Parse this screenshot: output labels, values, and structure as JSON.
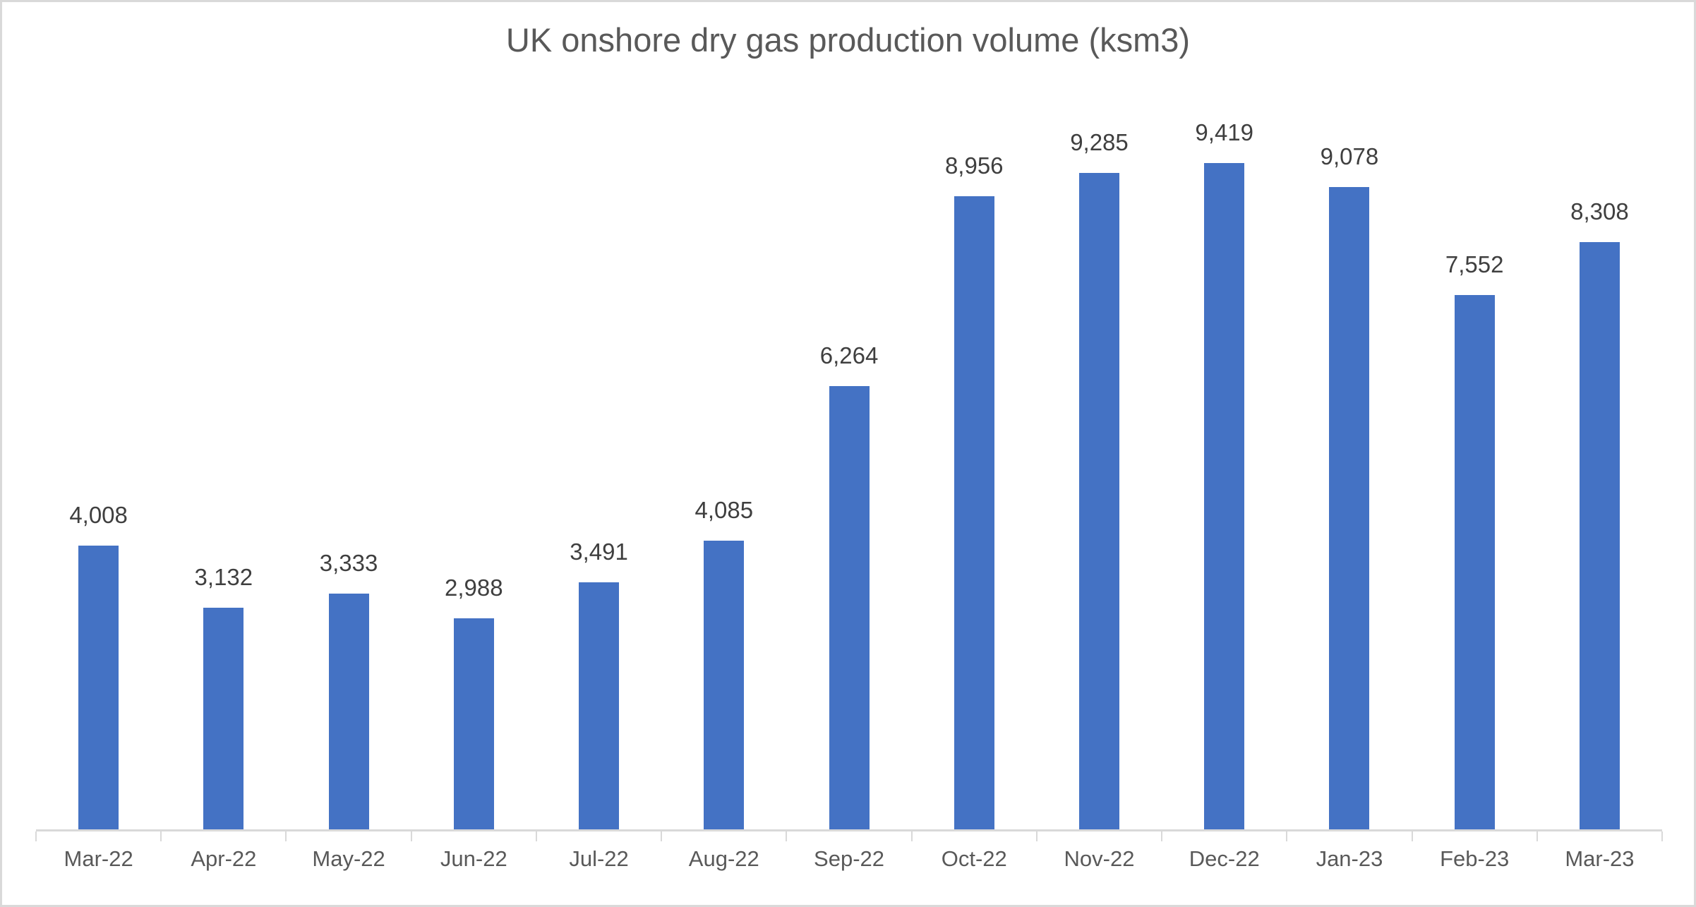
{
  "chart_data": {
    "type": "bar",
    "title": "UK onshore dry gas production volume (ksm3)",
    "categories": [
      "Mar-22",
      "Apr-22",
      "May-22",
      "Jun-22",
      "Jul-22",
      "Aug-22",
      "Sep-22",
      "Oct-22",
      "Nov-22",
      "Dec-22",
      "Jan-23",
      "Feb-23",
      "Mar-23"
    ],
    "values": [
      4008,
      3132,
      3333,
      2988,
      3491,
      4085,
      6264,
      8956,
      9285,
      9419,
      9078,
      7552,
      8308
    ],
    "value_labels": [
      "4,008",
      "3,132",
      "3,333",
      "2,988",
      "3,491",
      "4,085",
      "6,264",
      "8,956",
      "9,285",
      "9,419",
      "9,078",
      "7,552",
      "8,308"
    ],
    "xlabel": "",
    "ylabel": "",
    "ylim": [
      0,
      10000
    ],
    "grid": false,
    "legend": false,
    "data_labels_shown": true,
    "colors": {
      "bar": "#4472C4",
      "title_text": "#595959",
      "data_label_text": "#3f3f3f",
      "axis_label_text": "#595959",
      "axis_line": "#d9d9d9",
      "page_border": "#d9d9d9",
      "background": "#ffffff"
    }
  }
}
